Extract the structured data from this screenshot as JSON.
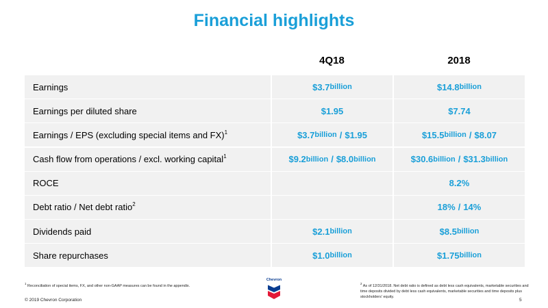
{
  "title": "Financial highlights",
  "columns": [
    "4Q18",
    "2018"
  ],
  "rows": [
    {
      "label": "Earnings",
      "sup": "",
      "c1": [
        {
          "v": "$3.7",
          "u": " billion"
        }
      ],
      "c2": [
        {
          "v": "$14.8",
          "u": " billion"
        }
      ]
    },
    {
      "label": "Earnings per diluted share",
      "sup": "",
      "c1": [
        {
          "v": "$1.95",
          "u": ""
        }
      ],
      "c2": [
        {
          "v": "$7.74",
          "u": ""
        }
      ]
    },
    {
      "label": "Earnings / EPS (excluding special items and FX)",
      "sup": "1",
      "c1": [
        {
          "v": "$3.7",
          "u": " billion"
        },
        {
          "v": "$1.95",
          "u": ""
        }
      ],
      "c2": [
        {
          "v": "$15.5",
          "u": " billion"
        },
        {
          "v": "$8.07",
          "u": ""
        }
      ]
    },
    {
      "label": "Cash flow from operations / excl. working capital",
      "sup": "1",
      "c1": [
        {
          "v": "$9.2",
          "u": " billion"
        },
        {
          "v": "$8.0",
          "u": " billion"
        }
      ],
      "c2": [
        {
          "v": "$30.6",
          "u": " billion"
        },
        {
          "v": "$31.3",
          "u": " billion"
        }
      ]
    },
    {
      "label": "ROCE",
      "sup": "",
      "c1": [],
      "c2": [
        {
          "v": "8.2%",
          "u": ""
        }
      ]
    },
    {
      "label": "Debt ratio / Net debt ratio",
      "sup": "2",
      "c1": [],
      "c2": [
        {
          "v": "18%",
          "u": ""
        },
        {
          "v": "14%",
          "u": ""
        }
      ]
    },
    {
      "label": "Dividends paid",
      "sup": "",
      "c1": [
        {
          "v": "$2.1",
          "u": " billion"
        }
      ],
      "c2": [
        {
          "v": "$8.5",
          "u": " billion"
        }
      ]
    },
    {
      "label": "Share repurchases",
      "sup": "",
      "c1": [
        {
          "v": "$1.0",
          "u": " billion"
        }
      ],
      "c2": [
        {
          "v": "$1.75",
          "u": " billion"
        }
      ]
    }
  ],
  "footnote1": {
    "sup": "1",
    "text": "Reconciliation of special items, FX, and other non-GAAP measures can be found in the appendix."
  },
  "footnote2": {
    "sup": "2",
    "text": "As of 12/31/2018.  Net debt ratio is defined as debt less cash equivalents, marketable securities and time deposits divided by debt less cash equivalents, marketable securities and time deposits plus stockholders' equity."
  },
  "logo_text": "Chevron",
  "copyright": "© 2019 Chevron Corporation",
  "page_number": "5",
  "colors": {
    "accent": "#1a9fd8",
    "row_fill": "#f1f1f1",
    "logo_blue": "#0a3d91",
    "logo_red": "#e31937"
  },
  "icons": {
    "logo": "chevron-logo-icon"
  }
}
